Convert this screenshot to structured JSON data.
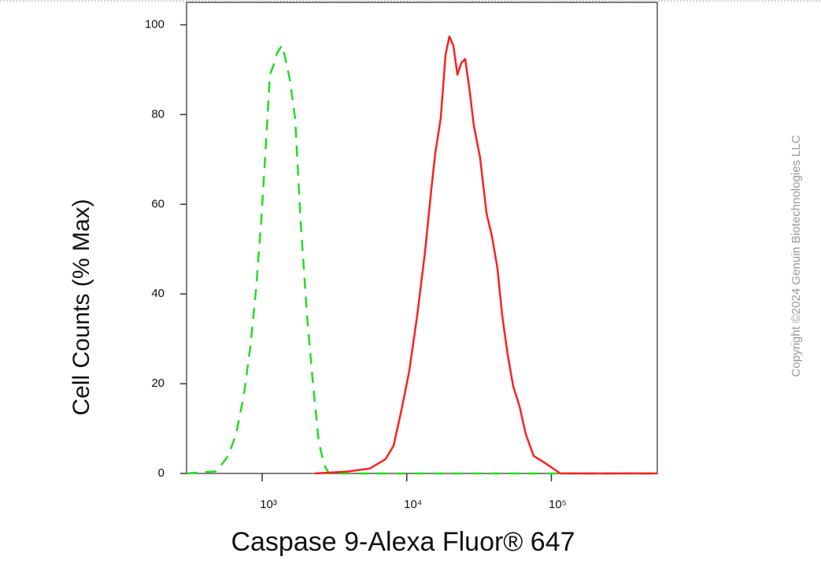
{
  "chart_data": {
    "type": "line",
    "xlabel": "Caspase 9-Alexa Fluor® 647",
    "ylabel": "Cell Counts (% Max)",
    "annotation": "Copyright ©2024 Genuin Biotechnologies LLC",
    "xscale": "log",
    "xlim": [
      300,
      540000
    ],
    "xticks": [
      {
        "value": 1000,
        "label": "10³"
      },
      {
        "value": 10000,
        "label": "10⁴"
      },
      {
        "value": 100000,
        "label": "10⁵"
      }
    ],
    "ylim": [
      0,
      105
    ],
    "yticks": [
      0,
      20,
      40,
      60,
      80,
      100
    ],
    "series": [
      {
        "color": "#22dd22",
        "line_style": "dash",
        "x": [
          300,
          483,
          583,
          661,
          748,
          828,
          904,
          986,
          1064,
          1132,
          1205,
          1268,
          1368,
          1436,
          1549,
          1690,
          1845,
          2042,
          2255,
          2465,
          2690,
          2900,
          540000
        ],
        "values": [
          0,
          0.5,
          3.9,
          8.8,
          17.6,
          28.2,
          40.5,
          56.3,
          73.9,
          88.9,
          91.2,
          93.7,
          95.4,
          93,
          88,
          79.2,
          56.3,
          35.2,
          19.4,
          7,
          1.8,
          0,
          0
        ]
      },
      {
        "color": "#ff2020",
        "line_style": "solid",
        "x": [
          2312,
          3821,
          5559,
          7145,
          8110,
          9183,
          10420,
          11800,
          13370,
          14790,
          15740,
          17180,
          18530,
          19720,
          20990,
          22390,
          23820,
          25350,
          26980,
          29110,
          32140,
          35560,
          38820,
          42360,
          45710,
          49890,
          54450,
          60260,
          66530,
          75510,
          87700,
          99540,
          115600,
          540000
        ],
        "values": [
          0,
          0.4,
          1.1,
          3.2,
          6.2,
          14.1,
          22.9,
          35.2,
          49.3,
          63.4,
          71.3,
          79.2,
          93.3,
          97.4,
          95.4,
          88.9,
          91.5,
          92.4,
          86.3,
          77.5,
          70.4,
          58.1,
          52.8,
          45.8,
          35.2,
          26.4,
          19.4,
          15,
          8.8,
          3.9,
          2.6,
          1.4,
          0,
          0
        ]
      }
    ]
  }
}
